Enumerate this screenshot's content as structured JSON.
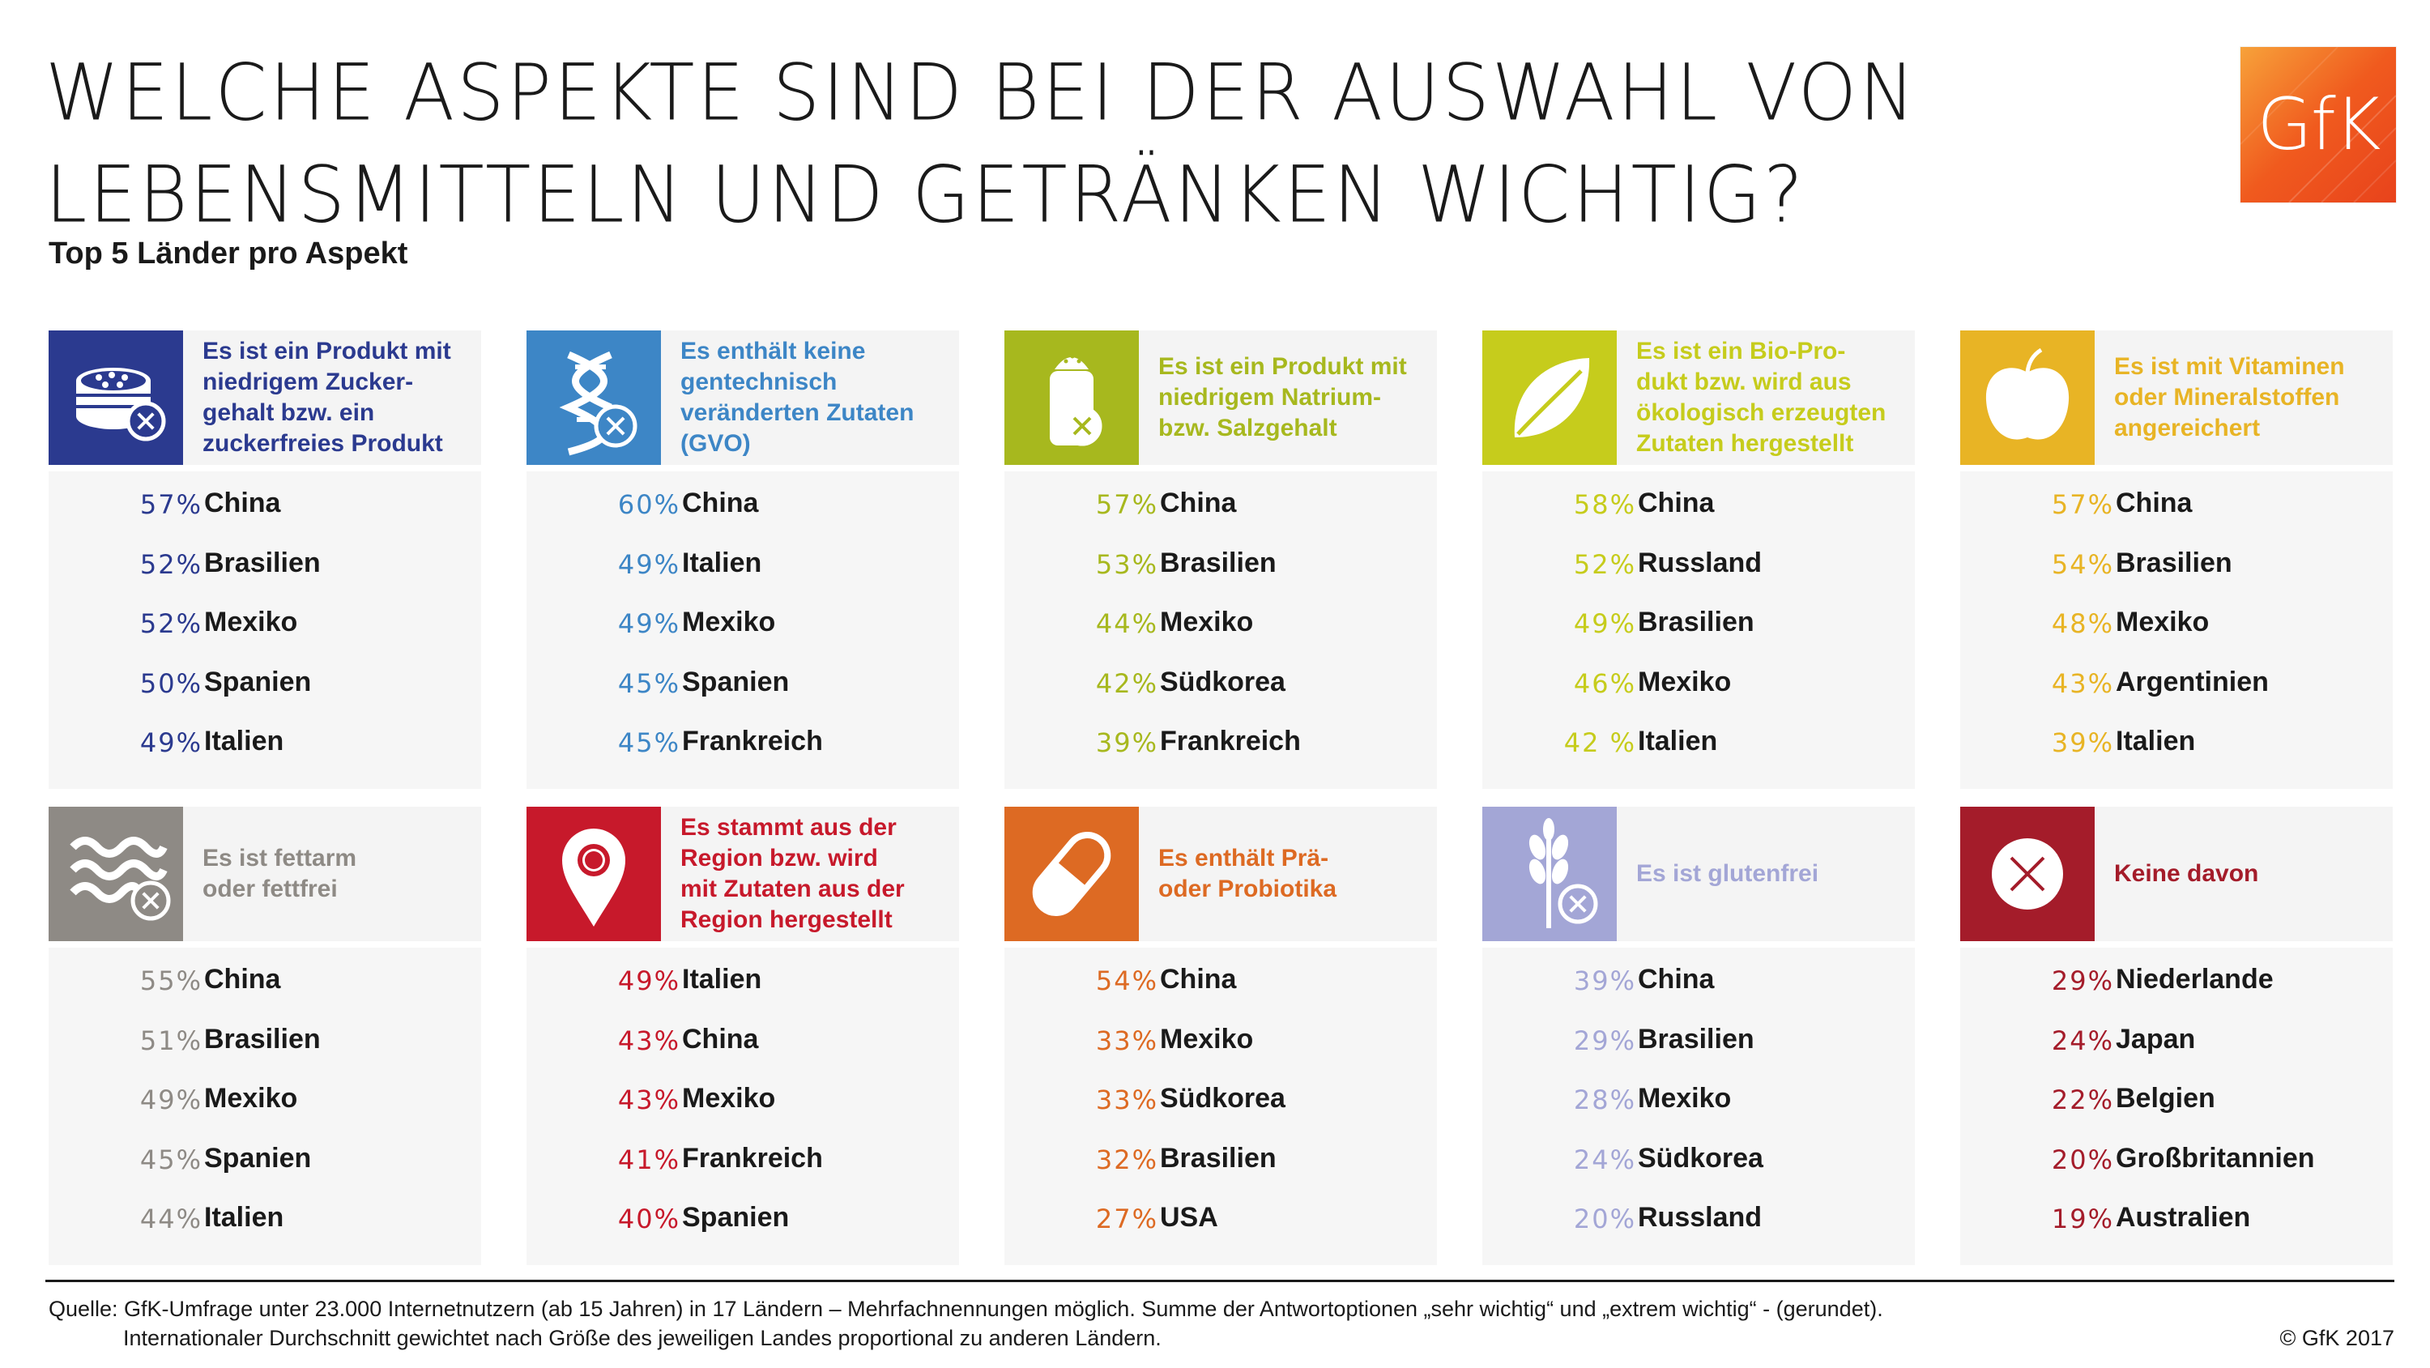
{
  "title": {
    "line1": "WELCHE ASPEKTE SIND BEI DER AUSWAHL VON",
    "line2": "LEBENSMITTELN UND GETRÄNKEN WICHTIG?"
  },
  "subtitle": "Top 5 Länder pro Aspekt",
  "logo": "GfK",
  "chart_data": {
    "type": "table",
    "title": "WELCHE ASPEKTE SIND BEI DER AUSWAHL VON LEBENSMITTELN UND GETRÄNKEN WICHTIG?",
    "subtitle": "Top 5 Länder pro Aspekt",
    "panels": [
      {
        "label": "Es ist ein Produkt mit niedrigem Zucker-gehalt bzw. ein zuckerfreies Produkt",
        "label_lines": [
          "Es ist ein Produkt mit",
          "niedrigem Zucker-",
          "gehalt bzw. ein",
          "zuckerfreies Produkt"
        ],
        "color": "#2b3a8f",
        "icon": "sugar-cubes-icon",
        "items": [
          {
            "pct": "57%",
            "country": "China"
          },
          {
            "pct": "52%",
            "country": "Brasilien"
          },
          {
            "pct": "52%",
            "country": "Mexiko"
          },
          {
            "pct": "50%",
            "country": "Spanien"
          },
          {
            "pct": "49%",
            "country": "Italien"
          }
        ]
      },
      {
        "label": "Es enthält keine gentechnisch veränderten Zutaten (GVO)",
        "label_lines": [
          "Es enthält keine",
          "gentechnisch",
          "veränderten Zutaten",
          "(GVO)"
        ],
        "color": "#3d86c6",
        "icon": "dna-icon",
        "items": [
          {
            "pct": "60%",
            "country": "China"
          },
          {
            "pct": "49%",
            "country": "Italien"
          },
          {
            "pct": "49%",
            "country": "Mexiko"
          },
          {
            "pct": "45%",
            "country": "Spanien"
          },
          {
            "pct": "45%",
            "country": "Frankreich"
          }
        ]
      },
      {
        "label": "Es ist ein Produkt mit niedrigem Natrium- bzw. Salzgehalt",
        "label_lines": [
          "Es ist ein Produkt mit",
          "niedrigem Natrium-",
          "bzw. Salzgehalt"
        ],
        "color": "#a7b81e",
        "icon": "salt-shaker-icon",
        "items": [
          {
            "pct": "57%",
            "country": "China"
          },
          {
            "pct": "53%",
            "country": "Brasilien"
          },
          {
            "pct": "44%",
            "country": "Mexiko"
          },
          {
            "pct": "42%",
            "country": "Südkorea"
          },
          {
            "pct": "39%",
            "country": "Frankreich"
          }
        ]
      },
      {
        "label": "Es ist ein Bio-Produkt bzw. wird aus ökologisch erzeugten Zutaten hergestellt",
        "label_lines": [
          "Es ist ein Bio-Pro-",
          "dukt bzw. wird aus",
          "ökologisch erzeugten",
          "Zutaten hergestellt"
        ],
        "color": "#c6cc1c",
        "icon": "leaf-icon",
        "items": [
          {
            "pct": "58%",
            "country": "China"
          },
          {
            "pct": "52%",
            "country": "Russland"
          },
          {
            "pct": "49%",
            "country": "Brasilien"
          },
          {
            "pct": "46%",
            "country": "Mexiko"
          },
          {
            "pct": "42 %",
            "country": "Italien"
          }
        ]
      },
      {
        "label": "Es ist mit Vitaminen oder Mineralstoffen angereichert",
        "label_lines": [
          "Es ist mit Vitaminen",
          "oder Mineralstoffen",
          "angereichert"
        ],
        "color": "#e8b425",
        "icon": "apple-icon",
        "items": [
          {
            "pct": "57%",
            "country": "China"
          },
          {
            "pct": "54%",
            "country": "Brasilien"
          },
          {
            "pct": "48%",
            "country": "Mexiko"
          },
          {
            "pct": "43%",
            "country": "Argentinien"
          },
          {
            "pct": "39%",
            "country": "Italien"
          }
        ]
      },
      {
        "label": "Es ist fettarm oder fettfrei",
        "label_lines": [
          "Es ist fettarm",
          "oder fettfrei"
        ],
        "color": "#8e8a85",
        "icon": "bacon-icon",
        "items": [
          {
            "pct": "55%",
            "country": "China"
          },
          {
            "pct": "51%",
            "country": "Brasilien"
          },
          {
            "pct": "49%",
            "country": "Mexiko"
          },
          {
            "pct": "45%",
            "country": "Spanien"
          },
          {
            "pct": "44%",
            "country": "Italien"
          }
        ]
      },
      {
        "label": "Es stammt aus der Region bzw. wird mit Zutaten aus der Region hergestellt",
        "label_lines": [
          "Es stammt aus der",
          "Region bzw. wird",
          "mit Zutaten aus der",
          "Region hergestellt"
        ],
        "color": "#c7192b",
        "icon": "location-pin-icon",
        "items": [
          {
            "pct": "49%",
            "country": "Italien"
          },
          {
            "pct": "43%",
            "country": "China"
          },
          {
            "pct": "43%",
            "country": "Mexiko"
          },
          {
            "pct": "41%",
            "country": "Frankreich"
          },
          {
            "pct": "40%",
            "country": "Spanien"
          }
        ]
      },
      {
        "label": "Es enthält Prä- oder Probiotika",
        "label_lines": [
          "Es enthält Prä-",
          "oder Probiotika"
        ],
        "color": "#dd6a23",
        "icon": "capsule-icon",
        "items": [
          {
            "pct": "54%",
            "country": "China"
          },
          {
            "pct": "33%",
            "country": "Mexiko"
          },
          {
            "pct": "33%",
            "country": "Südkorea"
          },
          {
            "pct": "32%",
            "country": "Brasilien"
          },
          {
            "pct": "27%",
            "country": "USA"
          }
        ]
      },
      {
        "label": "Es ist glutenfrei",
        "label_lines": [
          "Es ist glutenfrei"
        ],
        "color": "#a3a6d6",
        "icon": "wheat-icon",
        "items": [
          {
            "pct": "39%",
            "country": "China"
          },
          {
            "pct": "29%",
            "country": "Brasilien"
          },
          {
            "pct": "28%",
            "country": "Mexiko"
          },
          {
            "pct": "24%",
            "country": "Südkorea"
          },
          {
            "pct": "20%",
            "country": "Russland"
          }
        ]
      },
      {
        "label": "Keine davon",
        "label_lines": [
          "Keine davon"
        ],
        "color": "#a41c2a",
        "icon": "x-circle-icon",
        "items": [
          {
            "pct": "29%",
            "country": "Niederlande"
          },
          {
            "pct": "24%",
            "country": "Japan"
          },
          {
            "pct": "22%",
            "country": "Belgien"
          },
          {
            "pct": "20%",
            "country": "Großbritannien"
          },
          {
            "pct": "19%",
            "country": "Australien"
          }
        ]
      }
    ]
  },
  "footer": {
    "source_line1": "Quelle: GfK-Umfrage unter 23.000 Internetnutzern (ab 15 Jahren) in 17 Ländern – Mehrfachnennungen möglich. Summe der Antwortoptionen „sehr wichtig“ und „extrem wichtig“ - (gerundet).",
    "source_line2": "Internationaler Durchschnitt gewichtet nach Größe des jeweiligen Landes proportional zu anderen Ländern.",
    "copyright": "© GfK 2017"
  }
}
